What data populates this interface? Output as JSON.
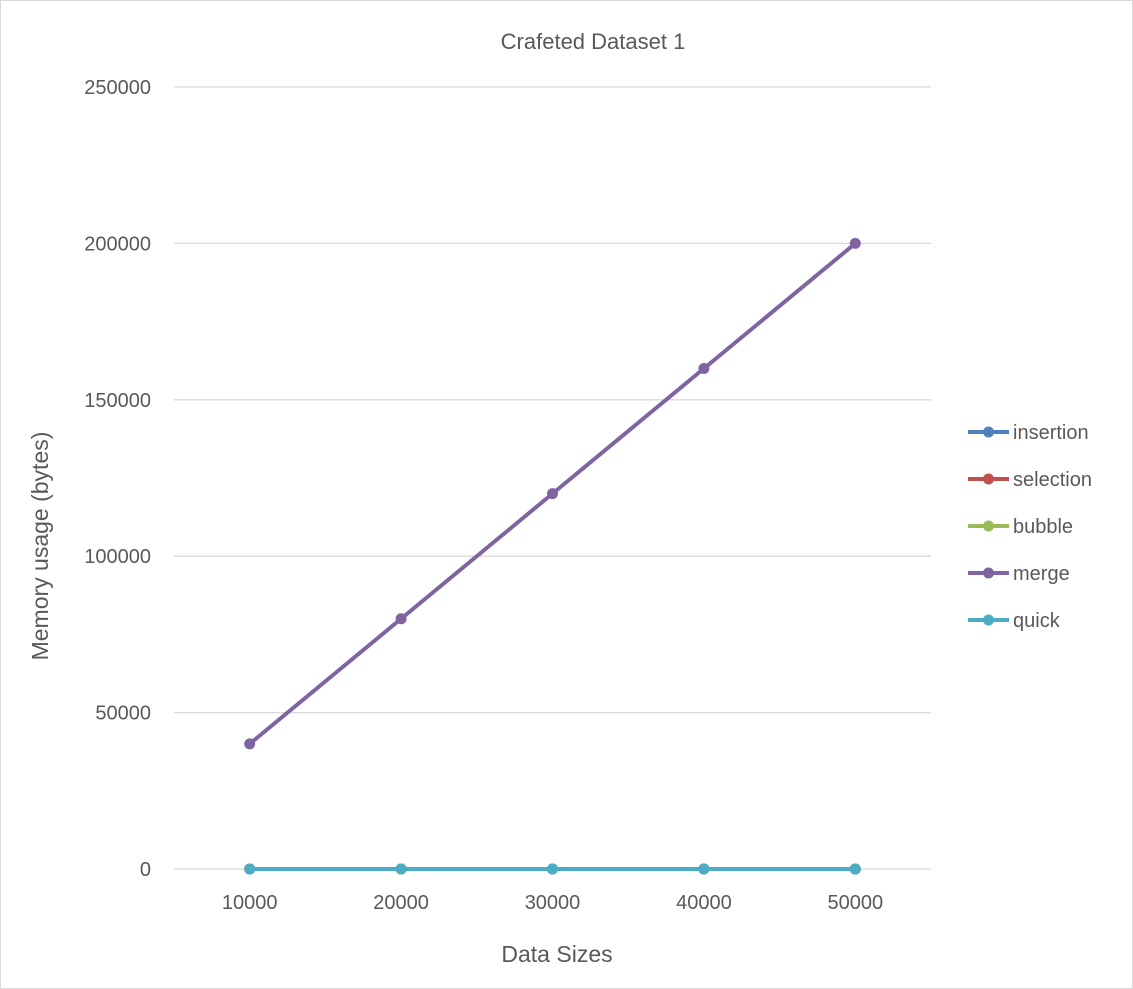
{
  "chart_data": {
    "type": "line",
    "title": "Crafeted Dataset 1",
    "xlabel": "Data Sizes",
    "ylabel": "Memory usage (bytes)",
    "x": [
      10000,
      20000,
      30000,
      40000,
      50000
    ],
    "ylim": [
      0,
      250000
    ],
    "yticks": [
      0,
      50000,
      100000,
      150000,
      200000,
      250000
    ],
    "grid": true,
    "legend_position": "right",
    "series": [
      {
        "name": "insertion",
        "color": "#4f81bd",
        "values": [
          0,
          0,
          0,
          0,
          0
        ]
      },
      {
        "name": "selection",
        "color": "#c0504d",
        "values": [
          0,
          0,
          0,
          0,
          0
        ]
      },
      {
        "name": "bubble",
        "color": "#9bbb59",
        "values": [
          0,
          0,
          0,
          0,
          0
        ]
      },
      {
        "name": "merge",
        "color": "#8064a2",
        "values": [
          40000,
          80000,
          120000,
          160000,
          200000
        ]
      },
      {
        "name": "quick",
        "color": "#4bacc6",
        "values": [
          0,
          0,
          0,
          0,
          0
        ]
      }
    ]
  }
}
